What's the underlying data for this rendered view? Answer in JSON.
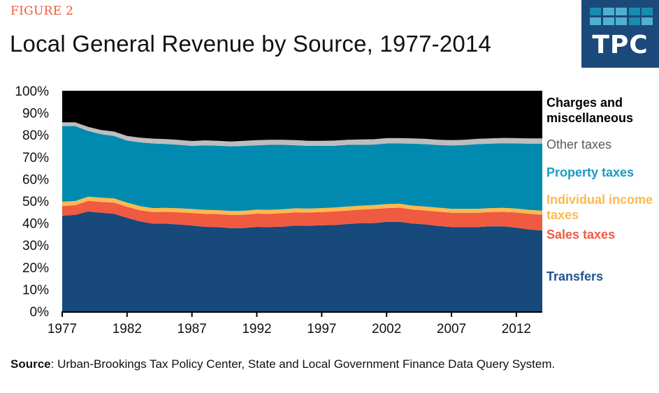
{
  "figure_label": "FIGURE 2",
  "title": "Local General Revenue by Source, 1977-2014",
  "logo": {
    "text": "TPC",
    "background": "#1b4a7a",
    "squares": [
      "#1a8bb0",
      "#4fb0d0",
      "#4fb0d0",
      "#1a8bb0",
      "#1a8bb0",
      "#4fb0d0",
      "#4fb0d0",
      "#4fb0d0",
      "#1a8bb0",
      "#4fb0d0"
    ]
  },
  "source": {
    "label": "Source",
    "text": ": Urban-Brookings Tax Policy Center, State and Local Government Finance Data Query System."
  },
  "chart_data": {
    "type": "area",
    "stacked": true,
    "title": "Local General Revenue by Source, 1977-2014",
    "xlabel": "",
    "ylabel": "",
    "xlim": [
      1977,
      2014
    ],
    "ylim": [
      0,
      100
    ],
    "x_ticks": [
      "1977",
      "1982",
      "1987",
      "1992",
      "1997",
      "2002",
      "2007",
      "2012"
    ],
    "y_ticks": [
      "0%",
      "10%",
      "20%",
      "30%",
      "40%",
      "50%",
      "60%",
      "70%",
      "80%",
      "90%",
      "100%"
    ],
    "grid": false,
    "legend": "right (inline labels)",
    "x": [
      1977,
      1978,
      1979,
      1980,
      1981,
      1982,
      1983,
      1984,
      1985,
      1986,
      1987,
      1988,
      1989,
      1990,
      1991,
      1992,
      1993,
      1994,
      1995,
      1996,
      1997,
      1998,
      1999,
      2000,
      2001,
      2002,
      2003,
      2004,
      2005,
      2006,
      2007,
      2008,
      2009,
      2010,
      2011,
      2012,
      2013,
      2014
    ],
    "series": [
      {
        "name": "Transfers",
        "color": "#17497a",
        "values": [
          43.4,
          43.7,
          45.3,
          44.7,
          44.2,
          42.4,
          40.8,
          39.7,
          39.7,
          39.4,
          38.9,
          38.3,
          38.2,
          37.7,
          37.8,
          38.3,
          38.2,
          38.4,
          38.9,
          38.8,
          39.0,
          39.1,
          39.6,
          40.0,
          40.0,
          40.6,
          40.6,
          39.8,
          39.4,
          38.7,
          38.2,
          38.2,
          38.2,
          38.5,
          38.5,
          37.9,
          37.1,
          36.6
        ]
      },
      {
        "name": "Sales taxes",
        "color": "#f05a40",
        "values": [
          4.4,
          4.4,
          4.8,
          4.9,
          5.1,
          5.0,
          5.0,
          5.3,
          5.4,
          5.5,
          5.7,
          5.9,
          5.9,
          6.0,
          6.0,
          6.0,
          6.0,
          6.1,
          6.0,
          6.0,
          6.0,
          6.2,
          6.1,
          6.1,
          6.4,
          6.2,
          6.4,
          6.3,
          6.3,
          6.5,
          6.5,
          6.5,
          6.5,
          6.5,
          6.6,
          6.9,
          7.1,
          7.2
        ]
      },
      {
        "name": "Individual income taxes",
        "color": "#fdb94e",
        "values": [
          1.9,
          1.9,
          1.9,
          1.9,
          1.9,
          1.9,
          1.9,
          1.8,
          1.8,
          1.8,
          1.8,
          1.8,
          1.8,
          1.8,
          1.8,
          1.8,
          1.8,
          1.8,
          1.8,
          1.8,
          1.8,
          1.8,
          1.8,
          1.8,
          1.8,
          1.8,
          1.8,
          1.8,
          1.8,
          1.8,
          1.8,
          1.8,
          1.8,
          1.8,
          1.8,
          1.8,
          1.8,
          1.8
        ]
      },
      {
        "name": "Property taxes",
        "color": "#008aaf",
        "values": [
          34.3,
          34.0,
          29.8,
          28.8,
          28.3,
          28.1,
          28.9,
          29.3,
          29.0,
          28.8,
          28.6,
          29.3,
          29.2,
          29.3,
          29.4,
          29.2,
          29.5,
          29.2,
          28.6,
          28.4,
          28.2,
          28.0,
          28.0,
          27.6,
          27.4,
          27.5,
          27.3,
          28.1,
          28.3,
          28.4,
          28.7,
          28.9,
          29.3,
          29.2,
          29.3,
          29.5,
          30.0,
          30.4
        ]
      },
      {
        "name": "Other taxes",
        "color": "#bcbec0",
        "values": [
          1.7,
          1.7,
          1.8,
          1.9,
          2.0,
          2.1,
          2.1,
          2.2,
          2.2,
          2.2,
          2.2,
          2.2,
          2.2,
          2.2,
          2.3,
          2.3,
          2.3,
          2.3,
          2.3,
          2.3,
          2.3,
          2.3,
          2.3,
          2.4,
          2.4,
          2.4,
          2.4,
          2.4,
          2.4,
          2.4,
          2.4,
          2.4,
          2.4,
          2.4,
          2.4,
          2.4,
          2.4,
          2.4
        ]
      },
      {
        "name": "Charges and miscellaneous",
        "color": "#000000",
        "values": [
          14.3,
          14.3,
          16.4,
          17.8,
          18.5,
          20.5,
          21.3,
          21.7,
          21.9,
          22.3,
          22.8,
          22.5,
          22.7,
          23.0,
          22.7,
          22.4,
          22.2,
          22.2,
          22.4,
          22.7,
          22.7,
          22.6,
          22.2,
          22.1,
          22.0,
          21.5,
          21.5,
          21.6,
          21.8,
          22.2,
          22.4,
          22.2,
          21.8,
          21.6,
          21.4,
          21.5,
          21.6,
          21.6
        ]
      }
    ],
    "legend_labels": [
      {
        "text": "Charges and miscellaneous",
        "color": "#000000"
      },
      {
        "text": "Other taxes",
        "color": "#58595b"
      },
      {
        "text": "Property taxes",
        "color": "#1a9bc4"
      },
      {
        "text": "Individual income taxes",
        "color": "#fdb94e"
      },
      {
        "text": "Sales taxes",
        "color": "#f05a40"
      },
      {
        "text": "Transfers",
        "color": "#1f5591"
      }
    ]
  }
}
